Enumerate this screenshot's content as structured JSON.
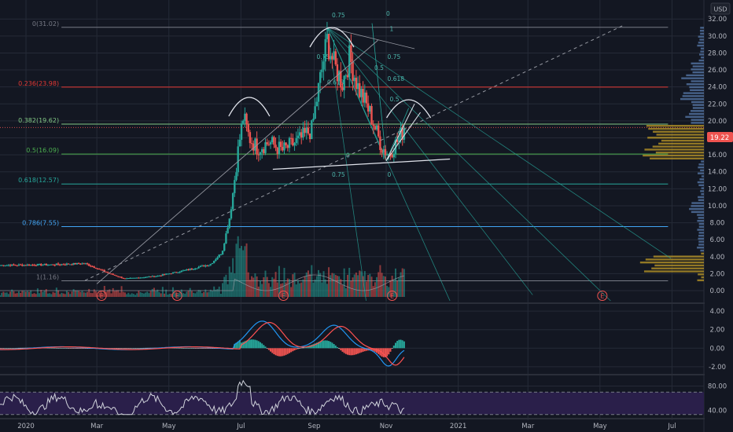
{
  "currency": "USD",
  "last_price_label": "19.22",
  "colors": {
    "background": "#131722",
    "grid": "#252a37",
    "axis_text": "#b2b5be",
    "up": "#26a69a",
    "down": "#ef5350",
    "fib_red": "#e53935",
    "fib_green": "#4caf50",
    "fib_blue": "#42a5f5",
    "fib_grey": "#787b86",
    "fan": "#26a69a",
    "macd": "#2196f3",
    "signal": "#ff5252",
    "rsi": "#d1d4dc",
    "rsi_band": "#2a1f4a",
    "volume_profile": "#c9a227"
  },
  "x_axis": {
    "ticks": [
      "2020",
      "Mar",
      "May",
      "Jul",
      "Sep",
      "Nov",
      "2021",
      "Mar",
      "May",
      "Jul"
    ]
  },
  "earnings_marker": "E",
  "chart_data": [
    {
      "type": "candlestick",
      "title": "",
      "y_axis": {
        "ticks": [
          "0.00",
          "2.00",
          "4.00",
          "6.00",
          "8.00",
          "10.00",
          "12.00",
          "14.00",
          "16.00",
          "18.00",
          "20.00",
          "22.00",
          "24.00",
          "26.00",
          "28.00",
          "30.00",
          "32.00"
        ],
        "ylim": [
          -1.2,
          33.5
        ]
      },
      "x_range": [
        "2019-12-10",
        "2021-07-28"
      ],
      "anchors": [
        [
          "2019-12-10",
          3.0
        ],
        [
          "2020-01-20",
          3.05
        ],
        [
          "2020-02-20",
          3.2
        ],
        [
          "2020-03-12",
          2.0
        ],
        [
          "2020-03-25",
          1.4
        ],
        [
          "2020-04-20",
          1.7
        ],
        [
          "2020-05-15",
          2.4
        ],
        [
          "2020-06-05",
          3.1
        ],
        [
          "2020-06-15",
          4.5
        ],
        [
          "2020-06-22",
          9.0
        ],
        [
          "2020-06-29",
          17.0
        ],
        [
          "2020-07-03",
          20.5
        ],
        [
          "2020-07-08",
          18.0
        ],
        [
          "2020-07-15",
          16.8
        ],
        [
          "2020-07-25",
          17.5
        ],
        [
          "2020-08-05",
          16.5
        ],
        [
          "2020-08-20",
          17.8
        ],
        [
          "2020-08-30",
          19.0
        ],
        [
          "2020-09-05",
          24.0
        ],
        [
          "2020-09-12",
          29.5
        ],
        [
          "2020-09-18",
          26.5
        ],
        [
          "2020-09-25",
          24.5
        ],
        [
          "2020-10-01",
          27.5
        ],
        [
          "2020-10-08",
          24.0
        ],
        [
          "2020-10-18",
          21.0
        ],
        [
          "2020-10-28",
          17.0
        ],
        [
          "2020-11-03",
          16.0
        ],
        [
          "2020-11-10",
          17.5
        ],
        [
          "2020-11-17",
          19.22
        ]
      ],
      "fib_retracement": [
        {
          "label": "0(31.02)",
          "value": 31.02,
          "color": "#787b86"
        },
        {
          "label": "0.236(23.98)",
          "value": 23.98,
          "color": "#e53935"
        },
        {
          "label": "0.382(19.62)",
          "value": 19.62,
          "color": "#81c784"
        },
        {
          "label": "0.5(16.09)",
          "value": 16.09,
          "color": "#4caf50"
        },
        {
          "label": "0.618(12.57)",
          "value": 12.57,
          "color": "#26a69a"
        },
        {
          "label": "0.786(7.55)",
          "value": 7.55,
          "color": "#42a5f5"
        },
        {
          "label": "1(1.16)",
          "value": 1.16,
          "color": "#787b86"
        }
      ],
      "fib_fan_labels": [
        "0.75",
        "0",
        "1",
        "0.75",
        "0.618",
        "0.75",
        "0.5",
        "0.618",
        "0.5",
        "0.75",
        "0",
        "0"
      ],
      "annotations": [
        "head-and-shoulders arcs",
        "dashed trendline",
        "rising wedge",
        "fib fans",
        "volume profile"
      ]
    },
    {
      "type": "line",
      "title": "",
      "y_axis": {
        "ticks": [
          "-2.00",
          "0.00",
          "2.00",
          "4.00"
        ],
        "ylim": [
          -2.6,
          4.6
        ]
      },
      "series": [
        "macd",
        "signal",
        "histogram"
      ]
    },
    {
      "type": "line",
      "title": "",
      "y_axis": {
        "ticks": [
          "40.00",
          "80.00"
        ],
        "ylim": [
          30,
          95
        ]
      },
      "band": [
        33,
        70
      ],
      "series": [
        "rsi"
      ]
    }
  ]
}
